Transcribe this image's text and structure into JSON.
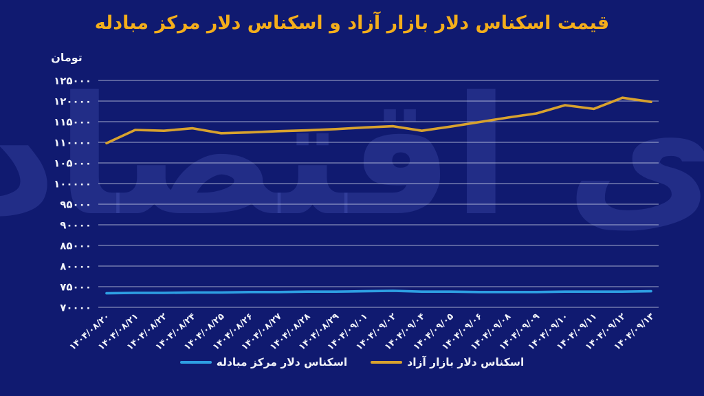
{
  "title": "قیمت اسکناس دلار بازار آزاد و اسکناس دلار مرکز مبادله",
  "unit_label": "تومان",
  "watermark": "دنیای اقتصاد",
  "colors": {
    "background": "#101A70",
    "title": "#F4AE1B",
    "axis_text": "#F2F4FA",
    "grid": "rgba(235,238,248,0.55)",
    "free_market_line": "#D8A22E",
    "exchange_line": "#2E9FE3",
    "watermark": "rgba(128,152,255,0.16)"
  },
  "legend": [
    {
      "label": "اسکناس دلار مرکز مبادله",
      "color": "#2E9FE3"
    },
    {
      "label": "اسکناس دلار بازار آزاد",
      "color": "#D8A22E"
    }
  ],
  "chart_data": {
    "type": "line",
    "title": "قیمت اسکناس دلار بازار آزاد و اسکناس دلار مرکز مبادله",
    "ylabel": "تومان",
    "ylim": [
      70000,
      125000
    ],
    "ytick_step": 5000,
    "ytick_labels": [
      "۱۲۵۰۰۰",
      "۱۲۰۰۰۰",
      "۱۱۵۰۰۰",
      "۱۱۰۰۰۰",
      "۱۰۵۰۰۰",
      "۱۰۰۰۰۰",
      "۹۵۰۰۰",
      "۹۰۰۰۰",
      "۸۵۰۰۰",
      "۸۰۰۰۰",
      "۷۵۰۰۰",
      "۷۰۰۰۰"
    ],
    "grid": "horizontal",
    "legend_position": "bottom",
    "x": [
      "۱۴۰۴/۰۸/۲۰",
      "۱۴۰۴/۰۸/۲۱",
      "۱۴۰۴/۰۸/۲۲",
      "۱۴۰۴/۰۸/۲۴",
      "۱۴۰۴/۰۸/۲۵",
      "۱۴۰۴/۰۸/۲۶",
      "۱۴۰۴/۰۸/۲۷",
      "۱۴۰۴/۰۸/۲۸",
      "۱۴۰۴/۰۸/۲۹",
      "۱۴۰۴/۰۹/۰۱",
      "۱۴۰۴/۰۹/۰۲",
      "۱۴۰۴/۰۹/۰۴",
      "۱۴۰۴/۰۹/۰۵",
      "۱۴۰۴/۰۹/۰۶",
      "۱۴۰۴/۰۹/۰۸",
      "۱۴۰۴/۰۹/۰۹",
      "۱۴۰۴/۰۹/۱۰",
      "۱۴۰۴/۰۹/۱۱",
      "۱۴۰۴/۰۹/۱۲",
      "۱۴۰۴/۰۹/۱۳"
    ],
    "series": [
      {
        "id": "free-market-line",
        "name": "اسکناس دلار بازار آزاد",
        "color": "#D8A22E",
        "values": [
          109800,
          113000,
          112800,
          113400,
          112200,
          112400,
          112700,
          112900,
          113200,
          113600,
          113900,
          112800,
          113800,
          114900,
          116000,
          117000,
          119000,
          118100,
          120800,
          119800
        ]
      },
      {
        "id": "exchange-center-line",
        "name": "اسکناس دلار مرکز مبادله",
        "color": "#2E9FE3",
        "values": [
          73400,
          73500,
          73500,
          73600,
          73600,
          73700,
          73700,
          73800,
          73800,
          73900,
          74000,
          73800,
          73800,
          73700,
          73700,
          73700,
          73800,
          73800,
          73800,
          73900
        ]
      }
    ]
  }
}
